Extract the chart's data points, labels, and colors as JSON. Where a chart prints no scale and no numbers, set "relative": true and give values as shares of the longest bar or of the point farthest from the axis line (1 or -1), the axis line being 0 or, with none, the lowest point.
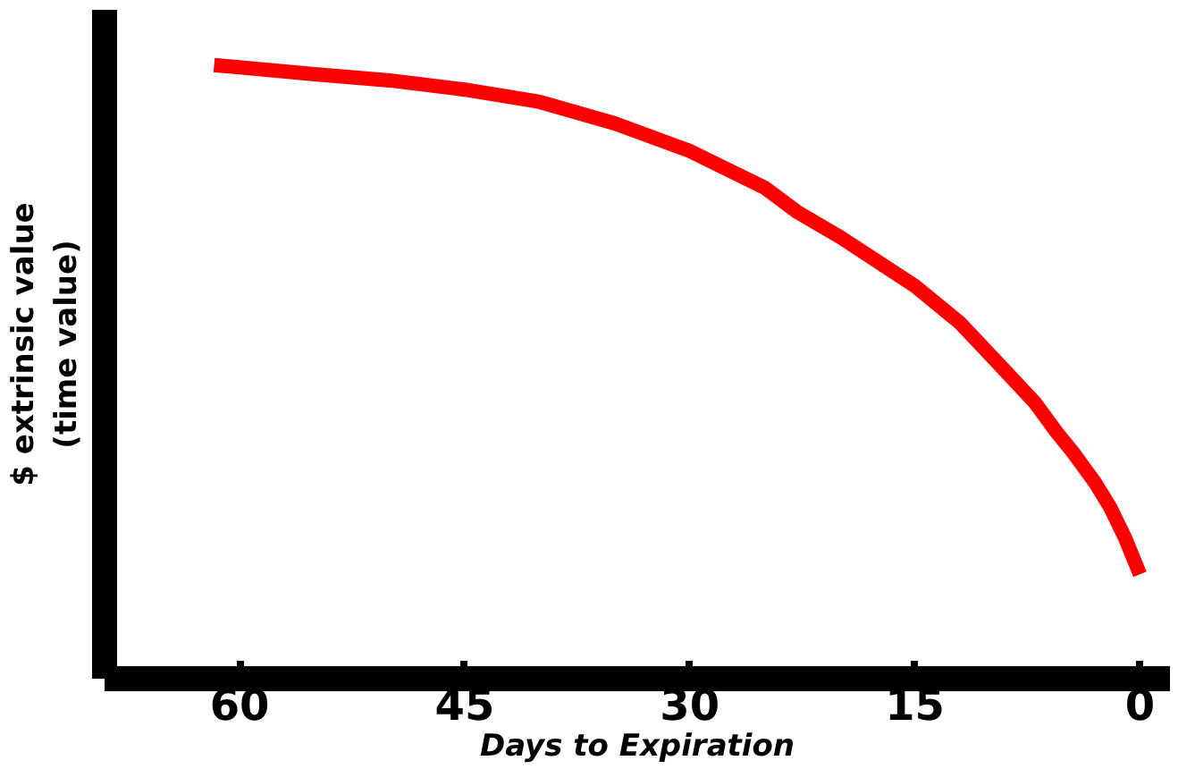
{
  "chart_data": {
    "type": "line",
    "xlabel": "Days to Expiration",
    "ylabel": "$ extrinsic value\n(time value)",
    "relative": true,
    "x": [
      61.7,
      55,
      50,
      45,
      40,
      35,
      30,
      25,
      22.8,
      20,
      15,
      12,
      9.3,
      7,
      5.5,
      4.5,
      3,
      2,
      1,
      0.5,
      0
    ],
    "series": [
      {
        "color": "#ff0000",
        "values": [
          1,
          0.985,
          0.975,
          0.96,
          0.94,
          0.905,
          0.86,
          0.8,
          0.76,
          0.72,
          0.64,
          0.58,
          0.51,
          0.45,
          0.4,
          0.37,
          0.32,
          0.28,
          0.23,
          0.2,
          0.17
        ]
      }
    ],
    "xlim": [
      69,
      -2
    ],
    "xticks": [
      60,
      45,
      30,
      15,
      0
    ],
    "grid": false,
    "marker": "none",
    "line_style": "solid"
  }
}
